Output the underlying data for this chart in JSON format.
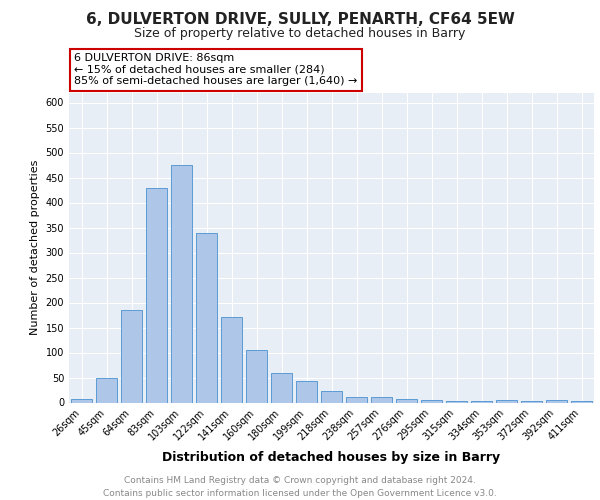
{
  "title": "6, DULVERTON DRIVE, SULLY, PENARTH, CF64 5EW",
  "subtitle": "Size of property relative to detached houses in Barry",
  "xlabel": "Distribution of detached houses by size in Barry",
  "ylabel": "Number of detached properties",
  "categories": [
    "26sqm",
    "45sqm",
    "64sqm",
    "83sqm",
    "103sqm",
    "122sqm",
    "141sqm",
    "160sqm",
    "180sqm",
    "199sqm",
    "218sqm",
    "238sqm",
    "257sqm",
    "276sqm",
    "295sqm",
    "315sqm",
    "334sqm",
    "353sqm",
    "372sqm",
    "392sqm",
    "411sqm"
  ],
  "values": [
    7,
    50,
    185,
    430,
    475,
    340,
    172,
    106,
    60,
    44,
    23,
    12,
    12,
    7,
    5,
    4,
    4,
    6,
    4,
    5,
    4
  ],
  "bar_color": "#aec6e8",
  "bar_edge_color": "#5b9bd5",
  "background_color": "#e8eef5",
  "annotation_line1": "6 DULVERTON DRIVE: 86sqm",
  "annotation_line2": "← 15% of detached houses are smaller (284)",
  "annotation_line3": "85% of semi-detached houses are larger (1,640) →",
  "annotation_box_color": "#ffffff",
  "annotation_box_edge_color": "#cc0000",
  "ylim": [
    0,
    620
  ],
  "yticks": [
    0,
    50,
    100,
    150,
    200,
    250,
    300,
    350,
    400,
    450,
    500,
    550,
    600
  ],
  "footer": "Contains HM Land Registry data © Crown copyright and database right 2024.\nContains public sector information licensed under the Open Government Licence v3.0.",
  "grid_color": "#ffffff",
  "title_fontsize": 11,
  "subtitle_fontsize": 9,
  "xlabel_fontsize": 9,
  "ylabel_fontsize": 8,
  "tick_fontsize": 7,
  "annotation_fontsize": 8,
  "footer_fontsize": 6.5
}
